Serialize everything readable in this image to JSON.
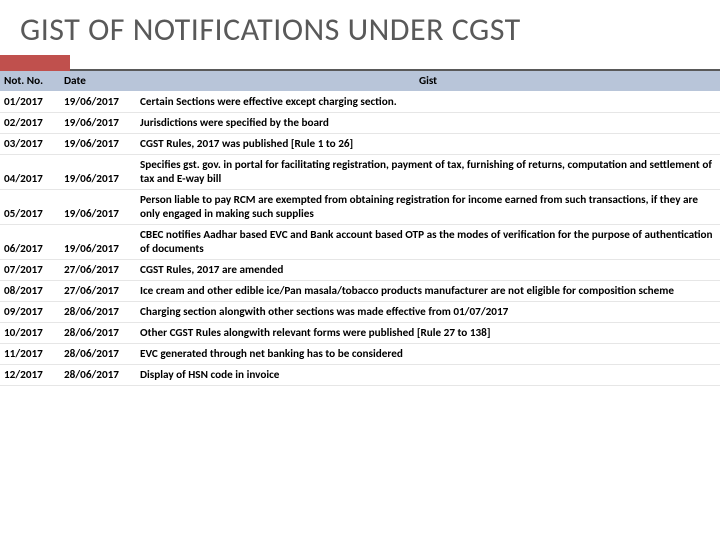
{
  "title": "GIST OF NOTIFICATIONS UNDER CGST",
  "columns": [
    "Not. No.",
    "Date",
    "Gist"
  ],
  "rows": [
    {
      "not_no": "01/2017",
      "date": "19/06/2017",
      "gist": "Certain Sections were effective except charging section."
    },
    {
      "not_no": "02/2017",
      "date": "19/06/2017",
      "gist": "Jurisdictions were specified by the board"
    },
    {
      "not_no": "03/2017",
      "date": "19/06/2017",
      "gist": "CGST Rules, 2017 was published [Rule 1 to 26]"
    },
    {
      "not_no": "04/2017",
      "date": "19/06/2017",
      "gist": "Specifies gst. gov. in portal for facilitating registration, payment of tax, furnishing of returns, computation and settlement of tax and E-way bill"
    },
    {
      "not_no": "05/2017",
      "date": "19/06/2017",
      "gist": "Person liable to pay RCM are exempted from obtaining registration for income earned from such transactions, if they are only engaged in making such supplies"
    },
    {
      "not_no": "06/2017",
      "date": "19/06/2017",
      "gist": "CBEC notifies Aadhar based EVC and Bank account based OTP as the modes of verification for the purpose of authentication of documents"
    },
    {
      "not_no": "07/2017",
      "date": "27/06/2017",
      "gist": "CGST Rules, 2017 are amended"
    },
    {
      "not_no": "08/2017",
      "date": "27/06/2017",
      "gist": "Ice cream and other edible ice/Pan masala/tobacco products manufacturer are not eligible for composition scheme"
    },
    {
      "not_no": "09/2017",
      "date": "28/06/2017",
      "gist": "Charging section alongwith other sections was made effective from 01/07/2017"
    },
    {
      "not_no": "10/2017",
      "date": "28/06/2017",
      "gist": "Other CGST Rules alongwith relevant forms were published [Rule 27 to 138]"
    },
    {
      "not_no": "11/2017",
      "date": "28/06/2017",
      "gist": "EVC generated through net banking has to be considered"
    },
    {
      "not_no": "12/2017",
      "date": "28/06/2017",
      "gist": "Display of HSN code in invoice"
    }
  ],
  "colors": {
    "title": "#595959",
    "accent": "#c0504d",
    "header_bg": "#b8c5d9",
    "row_border": "#e6e6e6"
  }
}
